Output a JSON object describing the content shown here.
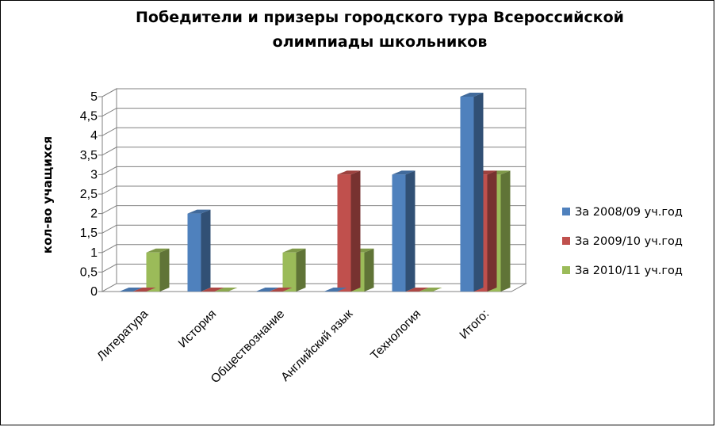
{
  "chart_data": {
    "type": "bar",
    "title_lines": [
      "Победители и призеры городского тура Всероссийской",
      "олимпиады школьников"
    ],
    "xlabel": "",
    "ylabel": "кол-во учащихся",
    "ylim": [
      0,
      5
    ],
    "yticks": [
      "0",
      "0,5",
      "1",
      "1,5",
      "2",
      "2,5",
      "3",
      "3,5",
      "4",
      "4,5",
      "5"
    ],
    "categories": [
      "Литература",
      "История",
      "Обществознание",
      "Английский язык",
      "Технология",
      "Итого:"
    ],
    "series": [
      {
        "name": "За 2008/09 уч.год",
        "values": [
          0,
          2,
          0,
          0,
          3,
          5
        ],
        "color": "#4f81bd"
      },
      {
        "name": "За 2009/10 уч.год",
        "values": [
          0,
          0,
          0,
          3,
          0,
          3
        ],
        "color": "#c0504d"
      },
      {
        "name": "За 2010/11 уч.год",
        "values": [
          1,
          0,
          1,
          1,
          0,
          3
        ],
        "color": "#9bbb59"
      }
    ],
    "grid": true,
    "legend_position": "right",
    "style": "3d-clustered-column"
  }
}
